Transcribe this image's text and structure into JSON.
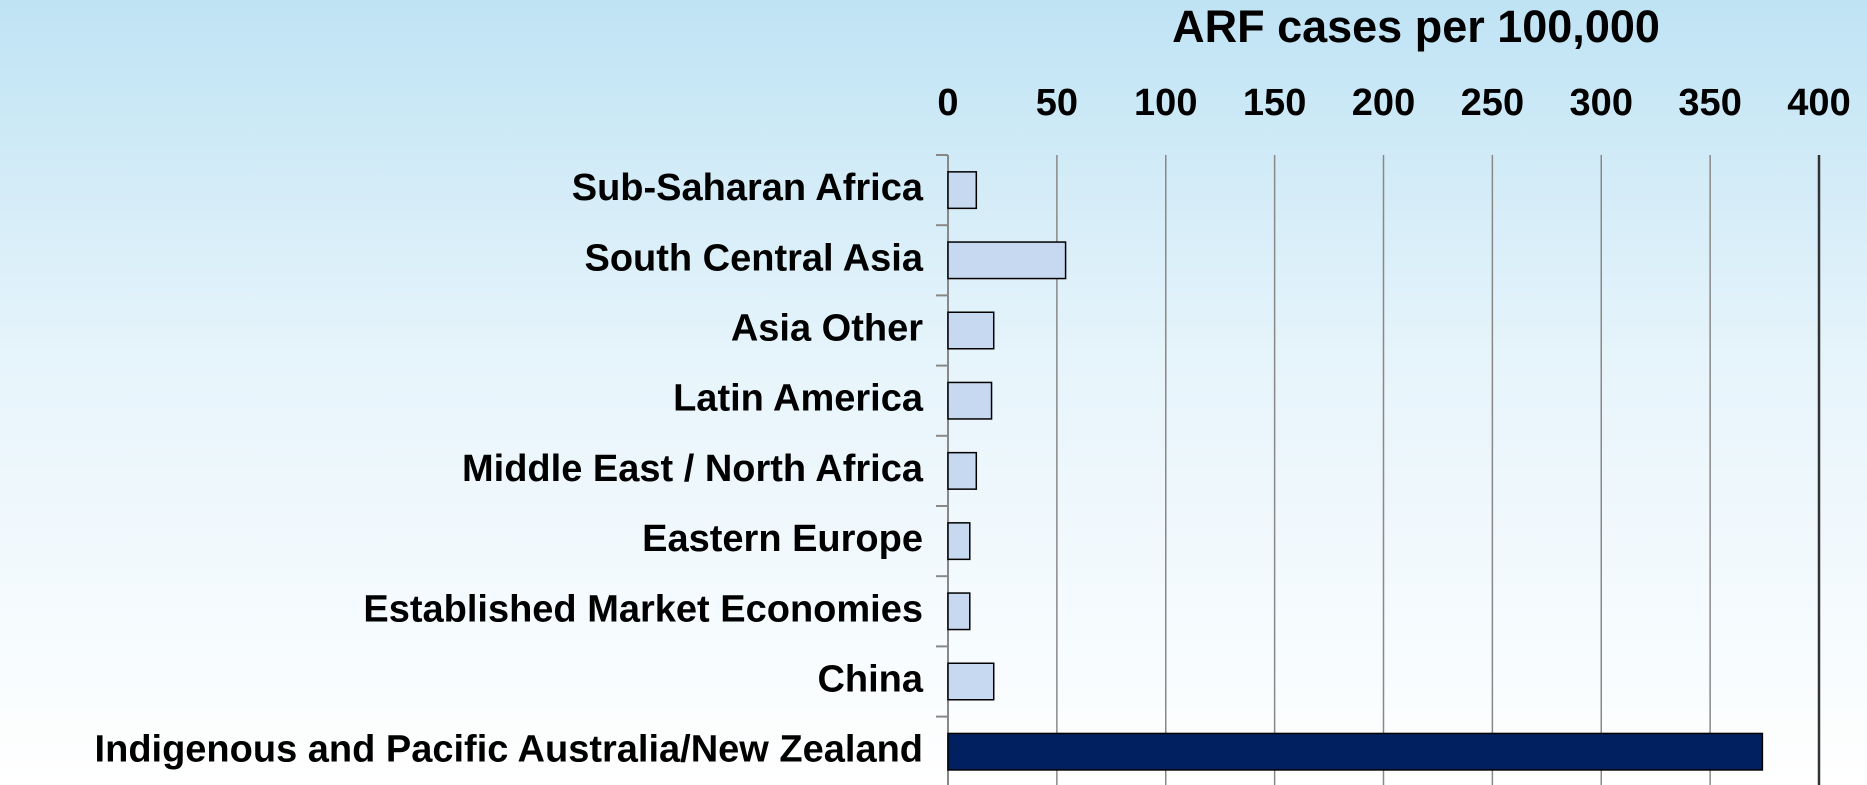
{
  "chart_data": {
    "type": "hbar",
    "title": "ARF cases per 100,000",
    "categories": [
      "Sub-Saharan Africa",
      "South Central Asia",
      "Asia Other",
      "Latin America",
      "Middle East / North Africa",
      "Eastern Europe",
      "Established Market Economies",
      "China",
      "Indigenous and Pacific Australia/New Zealand"
    ],
    "values": [
      13,
      54,
      21,
      20,
      13,
      10,
      10,
      21,
      374
    ],
    "colors": [
      "#c6d9f1",
      "#c6d9f1",
      "#c6d9f1",
      "#c6d9f1",
      "#c6d9f1",
      "#c6d9f1",
      "#c6d9f1",
      "#c6d9f1",
      "#002060"
    ],
    "xlim": [
      0,
      400
    ],
    "xticks": [
      0,
      50,
      100,
      150,
      200,
      250,
      300,
      350,
      400
    ],
    "grid": true
  }
}
